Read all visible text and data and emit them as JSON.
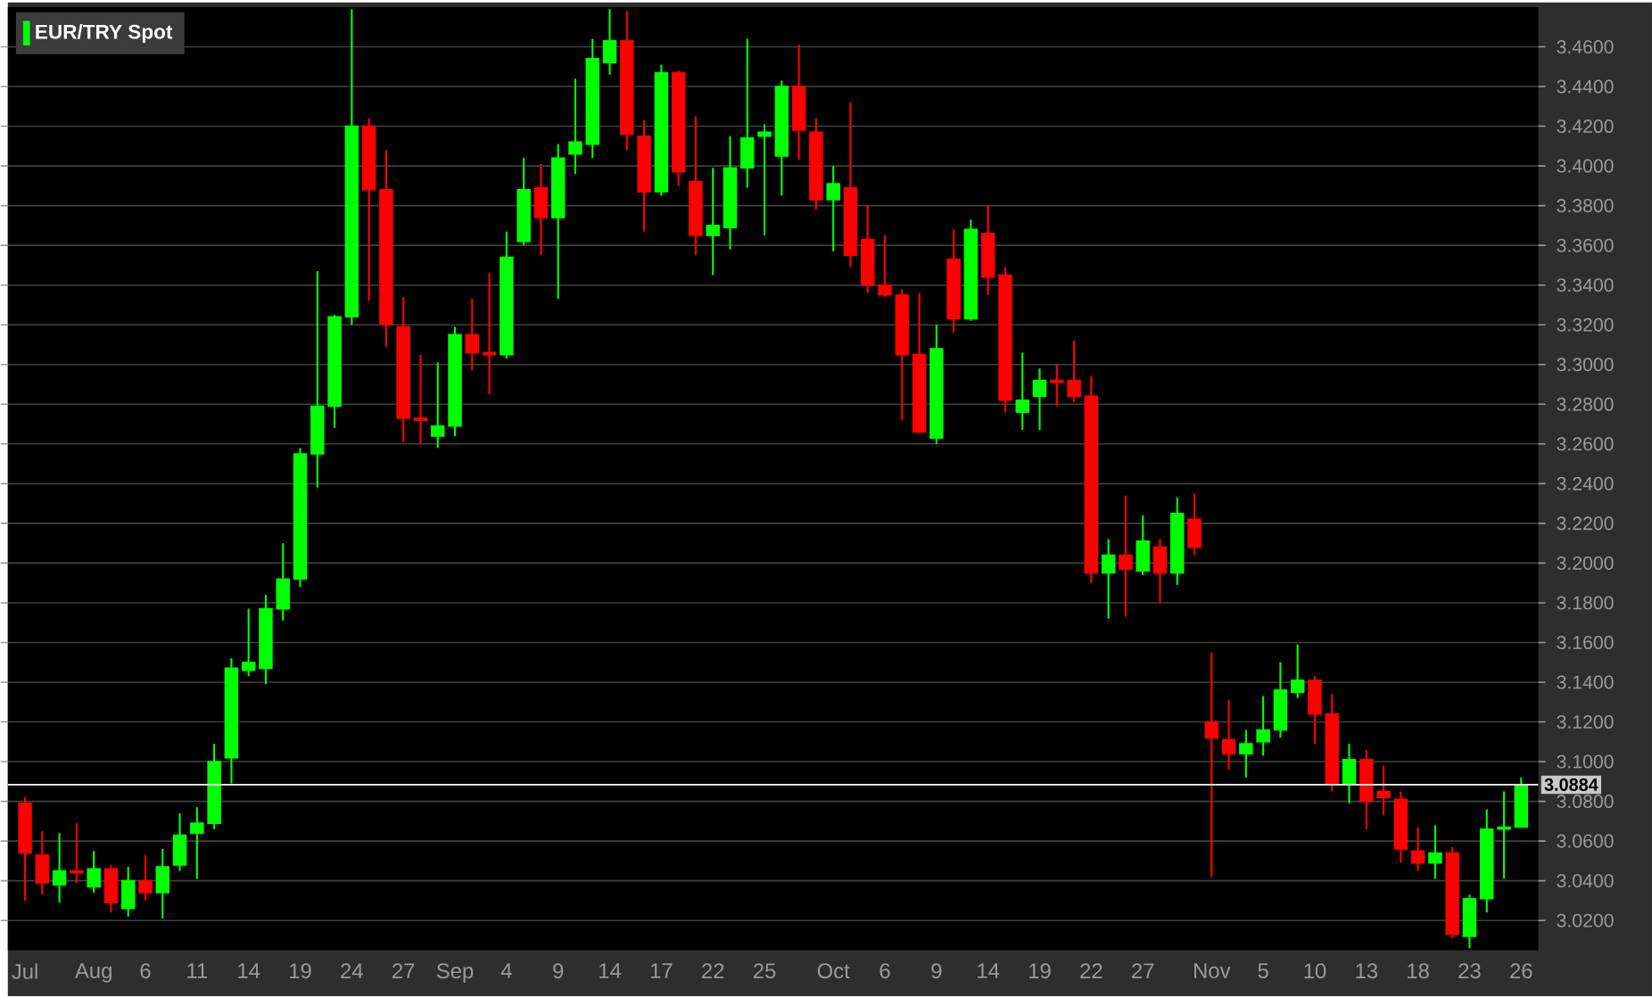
{
  "chart_data": {
    "type": "candlestick",
    "categories": [
      "Jul",
      null,
      null,
      null,
      "Aug",
      null,
      null,
      "6",
      null,
      null,
      "11",
      null,
      null,
      "14",
      null,
      null,
      "19",
      null,
      null,
      "24",
      null,
      null,
      "27",
      null,
      null,
      "Sep",
      null,
      null,
      "4",
      null,
      null,
      "9",
      null,
      null,
      "14",
      null,
      null,
      "17",
      null,
      null,
      "22",
      null,
      null,
      "25",
      null,
      null,
      null,
      "Oct",
      null,
      null,
      "6",
      null,
      null,
      "9",
      null,
      null,
      "14",
      null,
      null,
      "19",
      null,
      null,
      "22",
      null,
      null,
      "27",
      null,
      null,
      null,
      "Nov",
      null,
      null,
      "5",
      null,
      null,
      "10",
      null,
      null,
      "13",
      null,
      null,
      "18",
      null,
      null,
      "23",
      null,
      null,
      "26"
    ],
    "series": [
      {
        "name": "EUR/TRY Spot",
        "color": "#00ff00",
        "ohlc": [
          [
            3.079,
            3.082,
            3.03,
            3.054
          ],
          [
            3.053,
            3.065,
            3.033,
            3.039
          ],
          [
            3.038,
            3.064,
            3.029,
            3.045
          ],
          [
            3.045,
            3.069,
            3.039,
            3.044
          ],
          [
            3.037,
            3.055,
            3.034,
            3.046
          ],
          [
            3.046,
            3.048,
            3.024,
            3.029
          ],
          [
            3.026,
            3.047,
            3.022,
            3.04
          ],
          [
            3.04,
            3.053,
            3.03,
            3.034
          ],
          [
            3.034,
            3.056,
            3.021,
            3.047
          ],
          [
            3.048,
            3.074,
            3.045,
            3.063
          ],
          [
            3.064,
            3.077,
            3.041,
            3.069
          ],
          [
            3.069,
            3.109,
            3.066,
            3.1
          ],
          [
            3.102,
            3.152,
            3.089,
            3.147
          ],
          [
            3.146,
            3.177,
            3.143,
            3.15
          ],
          [
            3.147,
            3.184,
            3.139,
            3.177
          ],
          [
            3.177,
            3.21,
            3.171,
            3.192
          ],
          [
            3.192,
            3.258,
            3.188,
            3.255
          ],
          [
            3.255,
            3.347,
            3.238,
            3.279
          ],
          [
            3.279,
            3.325,
            3.268,
            3.324
          ],
          [
            3.324,
            3.479,
            3.32,
            3.42
          ],
          [
            3.42,
            3.424,
            3.332,
            3.388
          ],
          [
            3.388,
            3.408,
            3.309,
            3.32
          ],
          [
            3.319,
            3.334,
            3.261,
            3.273
          ],
          [
            3.273,
            3.305,
            3.26,
            3.272
          ],
          [
            3.264,
            3.301,
            3.258,
            3.269
          ],
          [
            3.269,
            3.319,
            3.264,
            3.315
          ],
          [
            3.315,
            3.333,
            3.297,
            3.306
          ],
          [
            3.306,
            3.346,
            3.285,
            3.305
          ],
          [
            3.305,
            3.367,
            3.303,
            3.354
          ],
          [
            3.362,
            3.404,
            3.36,
            3.388
          ],
          [
            3.389,
            3.401,
            3.355,
            3.374
          ],
          [
            3.374,
            3.411,
            3.333,
            3.404
          ],
          [
            3.406,
            3.444,
            3.396,
            3.412
          ],
          [
            3.411,
            3.464,
            3.404,
            3.454
          ],
          [
            3.452,
            3.479,
            3.446,
            3.463
          ],
          [
            3.463,
            3.478,
            3.408,
            3.416
          ],
          [
            3.415,
            3.423,
            3.367,
            3.387
          ],
          [
            3.387,
            3.451,
            3.385,
            3.447
          ],
          [
            3.447,
            3.448,
            3.39,
            3.397
          ],
          [
            3.392,
            3.425,
            3.355,
            3.365
          ],
          [
            3.365,
            3.399,
            3.345,
            3.37
          ],
          [
            3.369,
            3.415,
            3.358,
            3.399
          ],
          [
            3.399,
            3.464,
            3.389,
            3.414
          ],
          [
            3.415,
            3.421,
            3.365,
            3.417
          ],
          [
            3.405,
            3.443,
            3.385,
            3.44
          ],
          [
            3.44,
            3.461,
            3.403,
            3.418
          ],
          [
            3.417,
            3.424,
            3.378,
            3.383
          ],
          [
            3.383,
            3.4,
            3.357,
            3.391
          ],
          [
            3.389,
            3.432,
            3.349,
            3.355
          ],
          [
            3.363,
            3.38,
            3.336,
            3.34
          ],
          [
            3.34,
            3.365,
            3.334,
            3.335
          ],
          [
            3.335,
            3.338,
            3.272,
            3.305
          ],
          [
            3.305,
            3.336,
            3.266,
            3.266
          ],
          [
            3.263,
            3.32,
            3.26,
            3.308
          ],
          [
            3.353,
            3.368,
            3.316,
            3.323
          ],
          [
            3.323,
            3.373,
            3.322,
            3.368
          ],
          [
            3.366,
            3.38,
            3.335,
            3.344
          ],
          [
            3.345,
            3.349,
            3.276,
            3.282
          ],
          [
            3.276,
            3.306,
            3.267,
            3.282
          ],
          [
            3.284,
            3.298,
            3.267,
            3.292
          ],
          [
            3.292,
            3.3,
            3.279,
            3.291
          ],
          [
            3.292,
            3.312,
            3.281,
            3.284
          ],
          [
            3.284,
            3.294,
            3.19,
            3.195
          ],
          [
            3.195,
            3.212,
            3.172,
            3.204
          ],
          [
            3.204,
            3.234,
            3.173,
            3.197
          ],
          [
            3.196,
            3.224,
            3.194,
            3.211
          ],
          [
            3.208,
            3.212,
            3.18,
            3.195
          ],
          [
            3.195,
            3.233,
            3.189,
            3.225
          ],
          [
            3.222,
            3.235,
            3.204,
            3.208
          ],
          [
            3.12,
            3.155,
            3.042,
            3.112
          ],
          [
            3.111,
            3.131,
            3.096,
            3.104
          ],
          [
            3.104,
            3.116,
            3.092,
            3.109
          ],
          [
            3.11,
            3.133,
            3.103,
            3.116
          ],
          [
            3.116,
            3.15,
            3.112,
            3.136
          ],
          [
            3.135,
            3.159,
            3.132,
            3.141
          ],
          [
            3.141,
            3.143,
            3.109,
            3.124
          ],
          [
            3.124,
            3.134,
            3.085,
            3.089
          ],
          [
            3.089,
            3.109,
            3.079,
            3.101
          ],
          [
            3.101,
            3.106,
            3.066,
            3.08
          ],
          [
            3.085,
            3.098,
            3.073,
            3.082
          ],
          [
            3.081,
            3.085,
            3.049,
            3.056
          ],
          [
            3.055,
            3.067,
            3.045,
            3.049
          ],
          [
            3.049,
            3.068,
            3.041,
            3.054
          ],
          [
            3.054,
            3.057,
            3.011,
            3.013
          ],
          [
            3.012,
            3.033,
            3.006,
            3.031
          ],
          [
            3.031,
            3.076,
            3.024,
            3.066
          ],
          [
            3.066,
            3.085,
            3.041,
            3.067
          ],
          [
            3.067,
            3.092,
            3.067,
            3.0884
          ]
        ],
        "colors": [
          "#ff0000",
          "#ff0000",
          "#00ff00",
          "#ff0000",
          "#00ff00",
          "#ff0000",
          "#00ff00",
          "#ff0000",
          "#00ff00",
          "#00ff00",
          "#00ff00",
          "#00ff00",
          "#00ff00",
          "#00ff00",
          "#00ff00",
          "#00ff00",
          "#00ff00",
          "#00ff00",
          "#00ff00",
          "#00ff00",
          "#ff0000",
          "#ff0000",
          "#ff0000",
          "#ff0000",
          "#00ff00",
          "#00ff00",
          "#ff0000",
          "#ff0000",
          "#00ff00",
          "#00ff00",
          "#ff0000",
          "#00ff00",
          "#00ff00",
          "#00ff00",
          "#00ff00",
          "#ff0000",
          "#ff0000",
          "#00ff00",
          "#ff0000",
          "#ff0000",
          "#00ff00",
          "#00ff00",
          "#00ff00",
          "#00ff00",
          "#00ff00",
          "#ff0000",
          "#ff0000",
          "#00ff00",
          "#ff0000",
          "#ff0000",
          "#ff0000",
          "#ff0000",
          "#ff0000",
          "#00ff00",
          "#ff0000",
          "#00ff00",
          "#ff0000",
          "#ff0000",
          "#00ff00",
          "#00ff00",
          "#ff0000",
          "#ff0000",
          "#ff0000",
          "#00ff00",
          "#ff0000",
          "#00ff00",
          "#ff0000",
          "#00ff00",
          "#ff0000",
          "#ff0000",
          "#ff0000",
          "#00ff00",
          "#00ff00",
          "#00ff00",
          "#00ff00",
          "#ff0000",
          "#ff0000",
          "#00ff00",
          "#ff0000",
          "#ff0000",
          "#ff0000",
          "#ff0000",
          "#00ff00",
          "#ff0000",
          "#00ff00",
          "#00ff00",
          "#00ff00",
          "#00ff00"
        ]
      }
    ],
    "ylim": [
      3.005,
      3.48
    ],
    "yticks": [
      {
        "value": 3.02,
        "label": "3.0200"
      },
      {
        "value": 3.04,
        "label": "3.0400"
      },
      {
        "value": 3.06,
        "label": "3.0600"
      },
      {
        "value": 3.08,
        "label": "3.0800"
      },
      {
        "value": 3.1,
        "label": "3.1000"
      },
      {
        "value": 3.12,
        "label": "3.1200"
      },
      {
        "value": 3.14,
        "label": "3.1400"
      },
      {
        "value": 3.16,
        "label": "3.1600"
      },
      {
        "value": 3.18,
        "label": "3.1800"
      },
      {
        "value": 3.2,
        "label": "3.2000"
      },
      {
        "value": 3.22,
        "label": "3.2200"
      },
      {
        "value": 3.24,
        "label": "3.2400"
      },
      {
        "value": 3.26,
        "label": "3.2600"
      },
      {
        "value": 3.28,
        "label": "3.2800"
      },
      {
        "value": 3.3,
        "label": "3.3000"
      },
      {
        "value": 3.32,
        "label": "3.3200"
      },
      {
        "value": 3.34,
        "label": "3.3400"
      },
      {
        "value": 3.36,
        "label": "3.3600"
      },
      {
        "value": 3.38,
        "label": "3.3800"
      },
      {
        "value": 3.4,
        "label": "3.4000"
      },
      {
        "value": 3.42,
        "label": "3.4200"
      },
      {
        "value": 3.44,
        "label": "3.4400"
      },
      {
        "value": 3.46,
        "label": "3.4600"
      }
    ],
    "ref_lines": [
      {
        "axis": "y",
        "value": 3.0884,
        "label": "3.0884",
        "color": "#ffffff"
      }
    ],
    "grid": "y",
    "legend": "top left"
  }
}
